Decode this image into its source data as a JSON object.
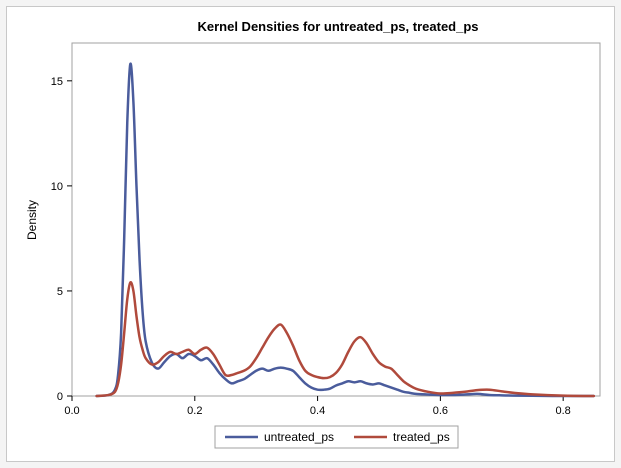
{
  "chart_data": {
    "type": "line",
    "title": "Kernel Densities for untreated_ps, treated_ps",
    "xlabel": "",
    "ylabel": "Density",
    "xlim": [
      0.0,
      0.86
    ],
    "ylim": [
      0,
      16.8
    ],
    "xticks": [
      0.0,
      0.2,
      0.4,
      0.6,
      0.8
    ],
    "xtick_labels": [
      "0.0",
      "0.2",
      "0.4",
      "0.6",
      "0.8"
    ],
    "yticks": [
      0,
      5,
      10,
      15
    ],
    "ytick_labels": [
      "0",
      "5",
      "10",
      "15"
    ],
    "grid": false,
    "legend_position": "bottom",
    "series": [
      {
        "name": "untreated_ps",
        "color": "#4a5c9c",
        "x": [
          0.04,
          0.06,
          0.07,
          0.075,
          0.08,
          0.085,
          0.09,
          0.095,
          0.1,
          0.105,
          0.11,
          0.115,
          0.12,
          0.13,
          0.14,
          0.15,
          0.16,
          0.17,
          0.18,
          0.19,
          0.2,
          0.21,
          0.22,
          0.23,
          0.24,
          0.25,
          0.26,
          0.27,
          0.28,
          0.29,
          0.3,
          0.31,
          0.32,
          0.33,
          0.34,
          0.35,
          0.36,
          0.37,
          0.38,
          0.39,
          0.4,
          0.41,
          0.42,
          0.43,
          0.44,
          0.45,
          0.46,
          0.47,
          0.48,
          0.49,
          0.5,
          0.51,
          0.52,
          0.53,
          0.54,
          0.55,
          0.56,
          0.58,
          0.6,
          0.62,
          0.64,
          0.66,
          0.68,
          0.7,
          0.72,
          0.75,
          0.8,
          0.85
        ],
        "y": [
          0,
          0.05,
          0.3,
          1.0,
          3.0,
          7.5,
          13.0,
          15.8,
          14.0,
          10.0,
          6.5,
          4.0,
          2.6,
          1.6,
          1.3,
          1.6,
          1.9,
          2.0,
          1.8,
          2.0,
          1.9,
          1.7,
          1.8,
          1.5,
          1.1,
          0.8,
          0.6,
          0.7,
          0.8,
          1.0,
          1.2,
          1.3,
          1.2,
          1.3,
          1.35,
          1.3,
          1.2,
          0.9,
          0.6,
          0.4,
          0.3,
          0.3,
          0.35,
          0.5,
          0.6,
          0.7,
          0.65,
          0.7,
          0.6,
          0.55,
          0.6,
          0.5,
          0.4,
          0.3,
          0.2,
          0.15,
          0.1,
          0.07,
          0.05,
          0.05,
          0.07,
          0.1,
          0.05,
          0.03,
          0.02,
          0.01,
          0,
          0
        ]
      },
      {
        "name": "treated_ps",
        "color": "#b04a3c",
        "x": [
          0.04,
          0.06,
          0.07,
          0.075,
          0.08,
          0.085,
          0.09,
          0.095,
          0.1,
          0.105,
          0.11,
          0.115,
          0.12,
          0.13,
          0.14,
          0.15,
          0.16,
          0.17,
          0.18,
          0.19,
          0.2,
          0.21,
          0.22,
          0.23,
          0.24,
          0.25,
          0.26,
          0.27,
          0.28,
          0.29,
          0.3,
          0.31,
          0.32,
          0.33,
          0.34,
          0.35,
          0.36,
          0.37,
          0.38,
          0.39,
          0.4,
          0.41,
          0.42,
          0.43,
          0.44,
          0.45,
          0.46,
          0.47,
          0.48,
          0.49,
          0.5,
          0.51,
          0.52,
          0.53,
          0.54,
          0.55,
          0.56,
          0.58,
          0.6,
          0.62,
          0.64,
          0.66,
          0.68,
          0.7,
          0.72,
          0.75,
          0.8,
          0.85
        ],
        "y": [
          0,
          0.05,
          0.2,
          0.6,
          1.5,
          3.0,
          4.6,
          5.4,
          5.0,
          3.8,
          2.8,
          2.2,
          1.8,
          1.5,
          1.6,
          1.9,
          2.1,
          2.0,
          2.1,
          2.2,
          2.0,
          2.2,
          2.3,
          2.0,
          1.5,
          1.0,
          1.0,
          1.1,
          1.2,
          1.4,
          1.8,
          2.3,
          2.8,
          3.2,
          3.4,
          3.0,
          2.4,
          1.7,
          1.2,
          1.0,
          0.9,
          0.85,
          0.9,
          1.1,
          1.5,
          2.1,
          2.6,
          2.8,
          2.5,
          2.0,
          1.6,
          1.4,
          1.3,
          1.0,
          0.7,
          0.5,
          0.35,
          0.2,
          0.12,
          0.15,
          0.2,
          0.28,
          0.3,
          0.22,
          0.15,
          0.08,
          0.02,
          0
        ]
      }
    ]
  }
}
